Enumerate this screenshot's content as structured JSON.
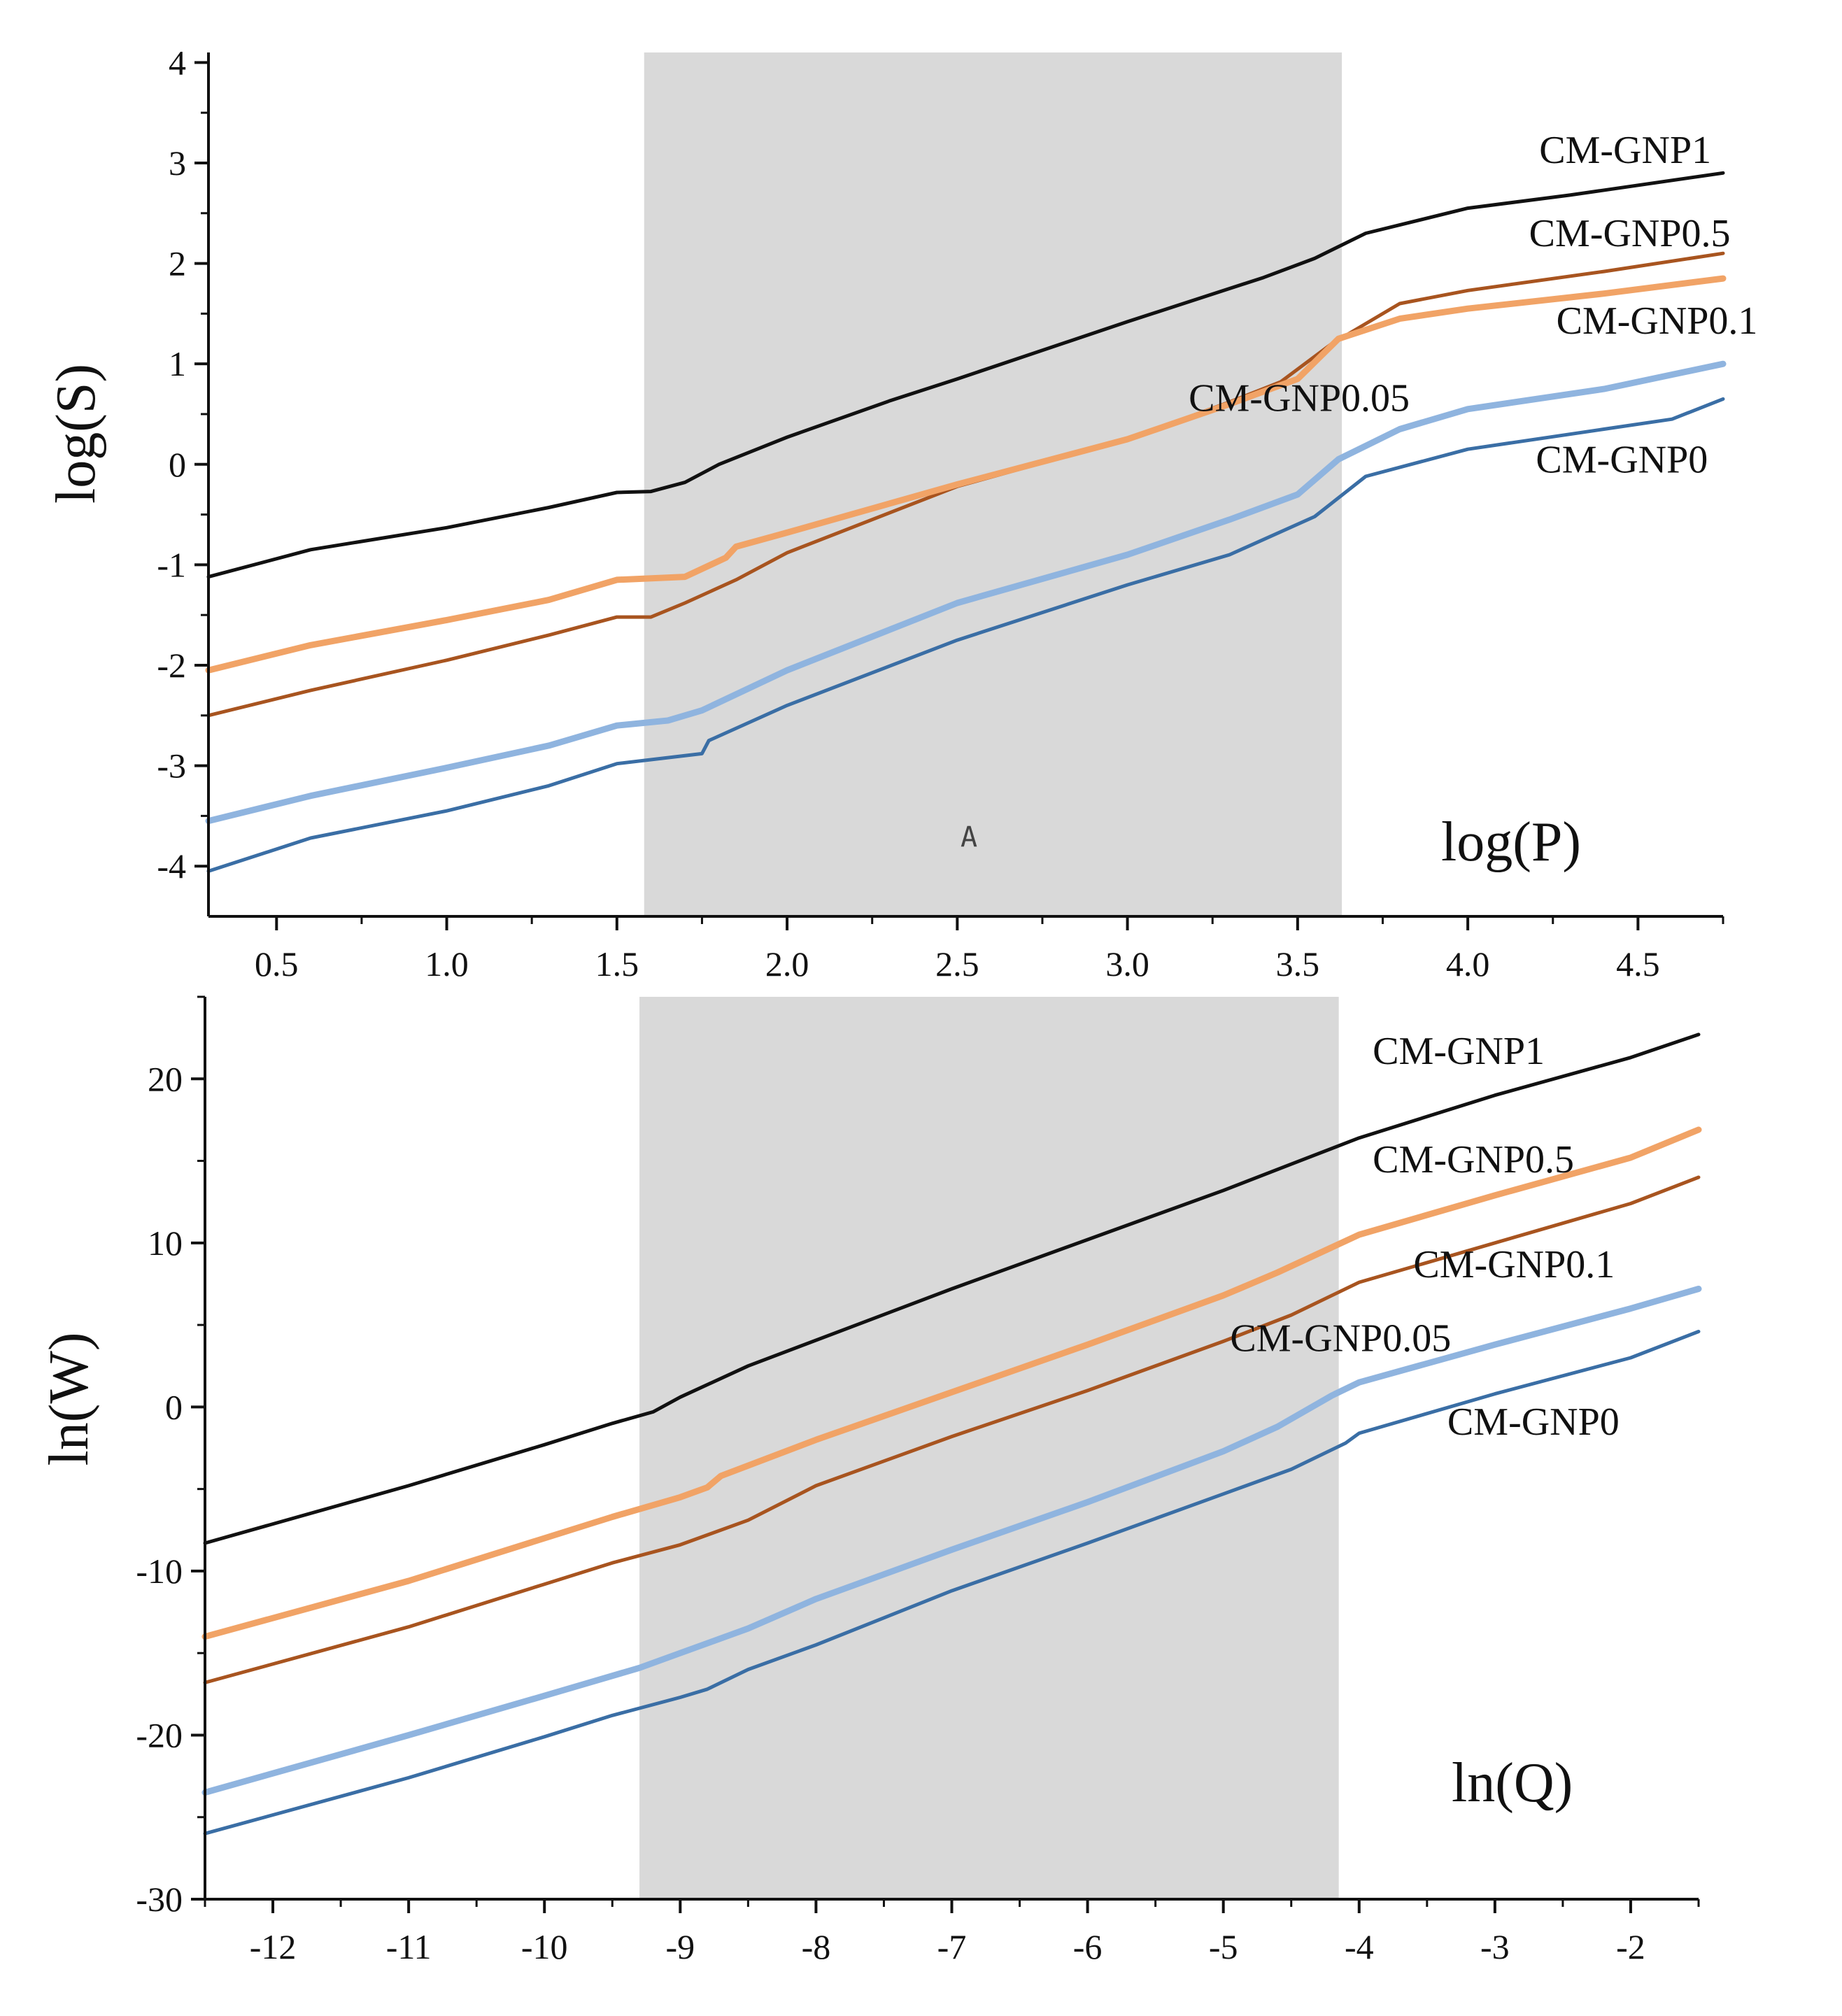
{
  "chart_data": [
    {
      "type": "line",
      "ylabel": "log(S)",
      "xlabel": "log(P)",
      "annotation": "A",
      "xlim": [
        0.3,
        4.75
      ],
      "ylim": [
        -4.5,
        4.1
      ],
      "xticks": [
        0.5,
        1.0,
        1.5,
        2.0,
        2.5,
        3.0,
        3.5,
        4.0,
        4.5
      ],
      "xtick_labels": [
        "0.5",
        "1.0",
        "1.5",
        "2.0",
        "2.5",
        "3.0",
        "3.5",
        "4.0",
        "4.5"
      ],
      "yticks": [
        -4,
        -3,
        -2,
        -1,
        0,
        1,
        2,
        3,
        4
      ],
      "ytick_labels": [
        "-4",
        "-3",
        "-2",
        "-1",
        "0",
        "1",
        "2",
        "3",
        "4"
      ],
      "shaded_region": [
        1.58,
        3.63
      ],
      "series": [
        {
          "name": "CM-GNP1",
          "color": "#111111",
          "points": [
            [
              0.3,
              -1.12
            ],
            [
              0.6,
              -0.85
            ],
            [
              1.0,
              -0.63
            ],
            [
              1.3,
              -0.43
            ],
            [
              1.5,
              -0.28
            ],
            [
              1.6,
              -0.27
            ],
            [
              1.7,
              -0.18
            ],
            [
              1.8,
              0.0
            ],
            [
              2.0,
              0.27
            ],
            [
              2.3,
              0.63
            ],
            [
              2.5,
              0.85
            ],
            [
              3.0,
              1.42
            ],
            [
              3.4,
              1.86
            ],
            [
              3.55,
              2.05
            ],
            [
              3.7,
              2.3
            ],
            [
              4.0,
              2.55
            ],
            [
              4.3,
              2.68
            ],
            [
              4.75,
              2.9
            ]
          ]
        },
        {
          "name": "CM-GNP0.5",
          "color": "#a8541f",
          "points": [
            [
              0.3,
              -2.5
            ],
            [
              0.6,
              -2.25
            ],
            [
              1.0,
              -1.95
            ],
            [
              1.3,
              -1.7
            ],
            [
              1.5,
              -1.52
            ],
            [
              1.6,
              -1.52
            ],
            [
              1.7,
              -1.38
            ],
            [
              1.85,
              -1.15
            ],
            [
              2.0,
              -0.88
            ],
            [
              2.5,
              -0.22
            ],
            [
              3.0,
              0.25
            ],
            [
              3.3,
              0.62
            ],
            [
              3.45,
              0.82
            ],
            [
              3.6,
              1.2
            ],
            [
              3.8,
              1.6
            ],
            [
              4.0,
              1.73
            ],
            [
              4.4,
              1.92
            ],
            [
              4.75,
              2.1
            ]
          ]
        },
        {
          "name": "CM-GNP0.1",
          "color": "#f1a366",
          "points": [
            [
              0.3,
              -2.05
            ],
            [
              0.6,
              -1.8
            ],
            [
              1.0,
              -1.55
            ],
            [
              1.3,
              -1.35
            ],
            [
              1.5,
              -1.15
            ],
            [
              1.7,
              -1.12
            ],
            [
              1.82,
              -0.93
            ],
            [
              1.85,
              -0.82
            ],
            [
              2.0,
              -0.68
            ],
            [
              2.5,
              -0.2
            ],
            [
              3.0,
              0.25
            ],
            [
              3.3,
              0.6
            ],
            [
              3.5,
              0.85
            ],
            [
              3.62,
              1.25
            ],
            [
              3.8,
              1.45
            ],
            [
              4.0,
              1.55
            ],
            [
              4.4,
              1.7
            ],
            [
              4.75,
              1.85
            ]
          ]
        },
        {
          "name": "CM-GNP0.05",
          "color": "#8fb4df",
          "points": [
            [
              0.3,
              -3.55
            ],
            [
              0.6,
              -3.3
            ],
            [
              1.0,
              -3.02
            ],
            [
              1.3,
              -2.8
            ],
            [
              1.5,
              -2.6
            ],
            [
              1.65,
              -2.55
            ],
            [
              1.75,
              -2.45
            ],
            [
              2.0,
              -2.05
            ],
            [
              2.5,
              -1.38
            ],
            [
              3.0,
              -0.9
            ],
            [
              3.3,
              -0.55
            ],
            [
              3.5,
              -0.3
            ],
            [
              3.62,
              0.05
            ],
            [
              3.8,
              0.35
            ],
            [
              4.0,
              0.55
            ],
            [
              4.4,
              0.75
            ],
            [
              4.75,
              1.0
            ]
          ]
        },
        {
          "name": "CM-GNP0",
          "color": "#3a6ea5",
          "points": [
            [
              0.3,
              -4.05
            ],
            [
              0.6,
              -3.72
            ],
            [
              1.0,
              -3.45
            ],
            [
              1.3,
              -3.2
            ],
            [
              1.5,
              -2.98
            ],
            [
              1.75,
              -2.88
            ],
            [
              1.77,
              -2.75
            ],
            [
              2.0,
              -2.4
            ],
            [
              2.5,
              -1.75
            ],
            [
              3.0,
              -1.2
            ],
            [
              3.3,
              -0.9
            ],
            [
              3.55,
              -0.52
            ],
            [
              3.7,
              -0.12
            ],
            [
              4.0,
              0.15
            ],
            [
              4.4,
              0.35
            ],
            [
              4.6,
              0.45
            ],
            [
              4.75,
              0.65
            ]
          ]
        }
      ],
      "labels": [
        {
          "text": "CM-GNP1",
          "x": 4.21,
          "y": 3.0
        },
        {
          "text": "CM-GNP0.5",
          "x": 4.18,
          "y": 2.17
        },
        {
          "text": "CM-GNP0.1",
          "x": 4.26,
          "y": 1.3
        },
        {
          "text": "CM-GNP0.05",
          "x": 3.18,
          "y": 0.53
        },
        {
          "text": "CM-GNP0",
          "x": 4.2,
          "y": -0.08
        }
      ]
    },
    {
      "type": "line",
      "ylabel": "ln(W)",
      "xlabel": "ln(Q)",
      "xlim": [
        -12.5,
        -1.5
      ],
      "ylim": [
        -30,
        25
      ],
      "xticks": [
        -12,
        -11,
        -10,
        -9,
        -8,
        -7,
        -6,
        -5,
        -4,
        -3,
        -2
      ],
      "xtick_labels": [
        "-12",
        "-11",
        "-10",
        "-9",
        "-8",
        "-7",
        "-6",
        "-5",
        "-4",
        "-3",
        "-2"
      ],
      "yticks": [
        -30,
        -20,
        -10,
        0,
        10,
        20
      ],
      "ytick_labels": [
        "-30",
        "-20",
        "-10",
        "0",
        "10",
        "20"
      ],
      "shaded_region": [
        -9.3,
        -4.15
      ],
      "series": [
        {
          "name": "CM-GNP1",
          "color": "#111111",
          "points": [
            [
              -12.5,
              -8.3
            ],
            [
              -11,
              -4.8
            ],
            [
              -10,
              -2.3
            ],
            [
              -9.5,
              -1.0
            ],
            [
              -9.2,
              -0.3
            ],
            [
              -9,
              0.6
            ],
            [
              -8.5,
              2.5
            ],
            [
              -7,
              7.2
            ],
            [
              -6,
              10.2
            ],
            [
              -5,
              13.2
            ],
            [
              -4.5,
              14.8
            ],
            [
              -4,
              16.4
            ],
            [
              -3,
              19.0
            ],
            [
              -2,
              21.3
            ],
            [
              -1.5,
              22.7
            ]
          ]
        },
        {
          "name": "CM-GNP0.5",
          "color": "#f1a366",
          "points": [
            [
              -12.5,
              -14.0
            ],
            [
              -11,
              -10.6
            ],
            [
              -10,
              -8.0
            ],
            [
              -9.5,
              -6.7
            ],
            [
              -9,
              -5.5
            ],
            [
              -8.8,
              -4.9
            ],
            [
              -8.7,
              -4.2
            ],
            [
              -8,
              -2.0
            ],
            [
              -7,
              0.9
            ],
            [
              -6,
              3.8
            ],
            [
              -5,
              6.8
            ],
            [
              -4.6,
              8.2
            ],
            [
              -4,
              10.5
            ],
            [
              -3,
              12.9
            ],
            [
              -2,
              15.2
            ],
            [
              -1.5,
              16.9
            ]
          ]
        },
        {
          "name": "CM-GNP0.1",
          "color": "#a8541f",
          "points": [
            [
              -12.5,
              -16.8
            ],
            [
              -11,
              -13.4
            ],
            [
              -10,
              -10.8
            ],
            [
              -9.5,
              -9.5
            ],
            [
              -9,
              -8.4
            ],
            [
              -8.5,
              -6.9
            ],
            [
              -8,
              -4.8
            ],
            [
              -7,
              -1.8
            ],
            [
              -6,
              1.0
            ],
            [
              -5,
              4.0
            ],
            [
              -4.5,
              5.6
            ],
            [
              -4,
              7.6
            ],
            [
              -3,
              10.0
            ],
            [
              -2,
              12.4
            ],
            [
              -1.5,
              14.0
            ]
          ]
        },
        {
          "name": "CM-GNP0.05",
          "color": "#8fb4df",
          "points": [
            [
              -12.5,
              -23.5
            ],
            [
              -11,
              -20.0
            ],
            [
              -10,
              -17.6
            ],
            [
              -9.3,
              -15.9
            ],
            [
              -9,
              -15.0
            ],
            [
              -8.5,
              -13.5
            ],
            [
              -8,
              -11.7
            ],
            [
              -7,
              -8.7
            ],
            [
              -6,
              -5.8
            ],
            [
              -5,
              -2.7
            ],
            [
              -4.6,
              -1.2
            ],
            [
              -4.2,
              0.7
            ],
            [
              -4,
              1.5
            ],
            [
              -3,
              3.8
            ],
            [
              -2,
              6.0
            ],
            [
              -1.5,
              7.2
            ]
          ]
        },
        {
          "name": "CM-GNP0",
          "color": "#3a6ea5",
          "points": [
            [
              -12.5,
              -26.0
            ],
            [
              -11,
              -22.6
            ],
            [
              -10,
              -20.1
            ],
            [
              -9.5,
              -18.8
            ],
            [
              -9,
              -17.7
            ],
            [
              -8.8,
              -17.2
            ],
            [
              -8.5,
              -16.0
            ],
            [
              -8,
              -14.5
            ],
            [
              -7,
              -11.2
            ],
            [
              -6,
              -8.3
            ],
            [
              -5,
              -5.3
            ],
            [
              -4.5,
              -3.8
            ],
            [
              -4.1,
              -2.2
            ],
            [
              -4,
              -1.6
            ],
            [
              -3,
              0.8
            ],
            [
              -2,
              3.0
            ],
            [
              -1.5,
              4.6
            ]
          ]
        }
      ],
      "labels": [
        {
          "text": "CM-GNP1",
          "x": -3.9,
          "y": 20.9
        },
        {
          "text": "CM-GNP0.5",
          "x": -3.9,
          "y": 14.3
        },
        {
          "text": "CM-GNP0.1",
          "x": -3.6,
          "y": 7.9
        },
        {
          "text": "CM-GNP0.05",
          "x": -4.95,
          "y": 3.4
        },
        {
          "text": "CM-GNP0",
          "x": -3.35,
          "y": -1.7
        }
      ]
    }
  ]
}
